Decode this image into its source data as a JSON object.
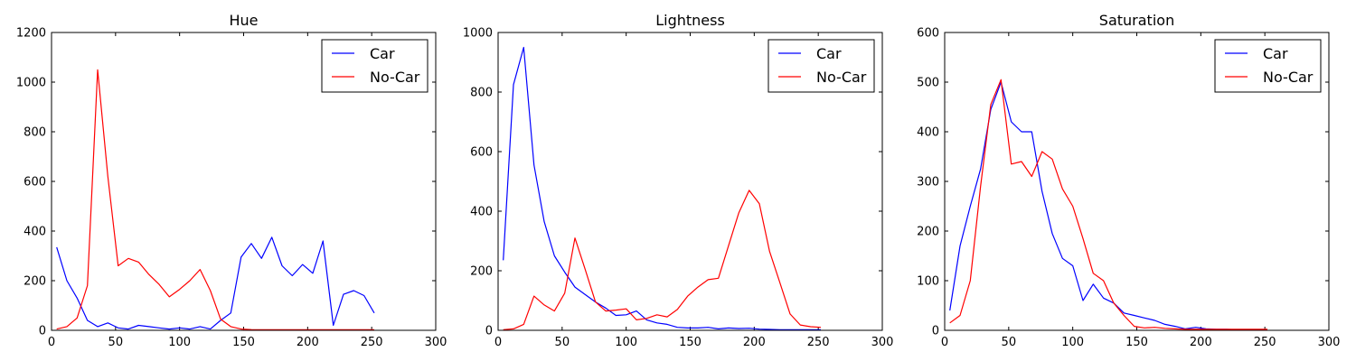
{
  "chart_data": [
    {
      "type": "line",
      "title": "Hue",
      "xlim": [
        0,
        300
      ],
      "ylim": [
        0,
        1200
      ],
      "xticks": [
        "0",
        "50",
        "100",
        "150",
        "200",
        "250",
        "300"
      ],
      "yticks": [
        "0",
        "200",
        "400",
        "600",
        "800",
        "1000",
        "1200"
      ],
      "legend": "top-right",
      "series": [
        {
          "name": "Car",
          "color": "#0000ff",
          "x": [
            4,
            12,
            20,
            28,
            36,
            44,
            52,
            60,
            68,
            76,
            84,
            92,
            100,
            108,
            116,
            124,
            132,
            140,
            148,
            156,
            164,
            172,
            180,
            188,
            196,
            204,
            212,
            220,
            228,
            236,
            244,
            252
          ],
          "y": [
            335,
            200,
            130,
            40,
            15,
            30,
            10,
            5,
            20,
            15,
            10,
            5,
            10,
            5,
            15,
            5,
            40,
            70,
            295,
            350,
            290,
            375,
            260,
            220,
            265,
            230,
            360,
            20,
            145,
            160,
            140,
            70
          ]
        },
        {
          "name": "No-Car",
          "color": "#ff0000",
          "x": [
            4,
            12,
            20,
            28,
            36,
            44,
            52,
            60,
            68,
            76,
            84,
            92,
            100,
            108,
            116,
            124,
            132,
            140,
            148,
            156,
            164,
            172,
            180,
            188,
            196,
            204,
            212,
            220,
            228,
            236,
            244,
            252
          ],
          "y": [
            5,
            15,
            50,
            180,
            1050,
            620,
            260,
            290,
            275,
            225,
            185,
            135,
            165,
            200,
            245,
            160,
            45,
            15,
            5,
            3,
            2,
            2,
            2,
            2,
            2,
            2,
            2,
            2,
            2,
            2,
            2,
            2
          ]
        }
      ]
    },
    {
      "type": "line",
      "title": "Lightness",
      "xlim": [
        0,
        300
      ],
      "ylim": [
        0,
        1000
      ],
      "xticks": [
        "0",
        "50",
        "100",
        "150",
        "200",
        "250",
        "300"
      ],
      "yticks": [
        "0",
        "200",
        "400",
        "600",
        "800",
        "1000"
      ],
      "legend": "top-right",
      "series": [
        {
          "name": "Car",
          "color": "#0000ff",
          "x": [
            4,
            12,
            20,
            28,
            36,
            44,
            52,
            60,
            68,
            76,
            84,
            92,
            100,
            108,
            116,
            124,
            132,
            140,
            148,
            156,
            164,
            172,
            180,
            188,
            196,
            204,
            212,
            220,
            228,
            236,
            244,
            252
          ],
          "y": [
            235,
            825,
            950,
            555,
            365,
            250,
            195,
            145,
            120,
            95,
            75,
            50,
            52,
            65,
            35,
            25,
            20,
            10,
            8,
            8,
            10,
            5,
            8,
            6,
            7,
            4,
            3,
            2,
            2,
            2,
            2,
            2
          ]
        },
        {
          "name": "No-Car",
          "color": "#ff0000",
          "x": [
            4,
            12,
            20,
            28,
            36,
            44,
            52,
            60,
            68,
            76,
            84,
            92,
            100,
            108,
            116,
            124,
            132,
            140,
            148,
            156,
            164,
            172,
            180,
            188,
            196,
            204,
            212,
            220,
            228,
            236,
            244,
            252
          ],
          "y": [
            2,
            5,
            20,
            115,
            85,
            65,
            125,
            310,
            205,
            95,
            65,
            68,
            72,
            35,
            40,
            52,
            45,
            70,
            115,
            145,
            170,
            175,
            285,
            395,
            470,
            425,
            265,
            160,
            55,
            18,
            12,
            10
          ]
        }
      ]
    },
    {
      "type": "line",
      "title": "Saturation",
      "xlim": [
        0,
        300
      ],
      "ylim": [
        0,
        600
      ],
      "xticks": [
        "0",
        "50",
        "100",
        "150",
        "200",
        "250",
        "300"
      ],
      "yticks": [
        "0",
        "100",
        "200",
        "300",
        "400",
        "500",
        "600"
      ],
      "legend": "top-right",
      "series": [
        {
          "name": "Car",
          "color": "#0000ff",
          "x": [
            4,
            12,
            20,
            28,
            36,
            44,
            52,
            60,
            68,
            76,
            84,
            92,
            100,
            108,
            116,
            124,
            132,
            140,
            148,
            156,
            164,
            172,
            180,
            188,
            196,
            204,
            212,
            220,
            228,
            236,
            244,
            252
          ],
          "y": [
            40,
            170,
            250,
            325,
            445,
            500,
            420,
            400,
            400,
            280,
            195,
            145,
            130,
            60,
            93,
            65,
            55,
            35,
            30,
            25,
            20,
            12,
            8,
            3,
            6,
            3,
            2,
            2,
            1,
            1,
            1,
            1
          ]
        },
        {
          "name": "No-Car",
          "color": "#ff0000",
          "x": [
            4,
            12,
            20,
            28,
            36,
            44,
            52,
            60,
            68,
            76,
            84,
            92,
            100,
            108,
            116,
            124,
            132,
            140,
            148,
            156,
            164,
            172,
            180,
            188,
            196,
            204,
            212,
            220,
            228,
            236,
            244,
            252
          ],
          "y": [
            15,
            30,
            100,
            290,
            455,
            505,
            335,
            340,
            310,
            360,
            345,
            285,
            250,
            185,
            115,
            100,
            55,
            30,
            8,
            5,
            6,
            4,
            3,
            2,
            2,
            2,
            2,
            2,
            2,
            2,
            2,
            2
          ]
        }
      ]
    }
  ]
}
